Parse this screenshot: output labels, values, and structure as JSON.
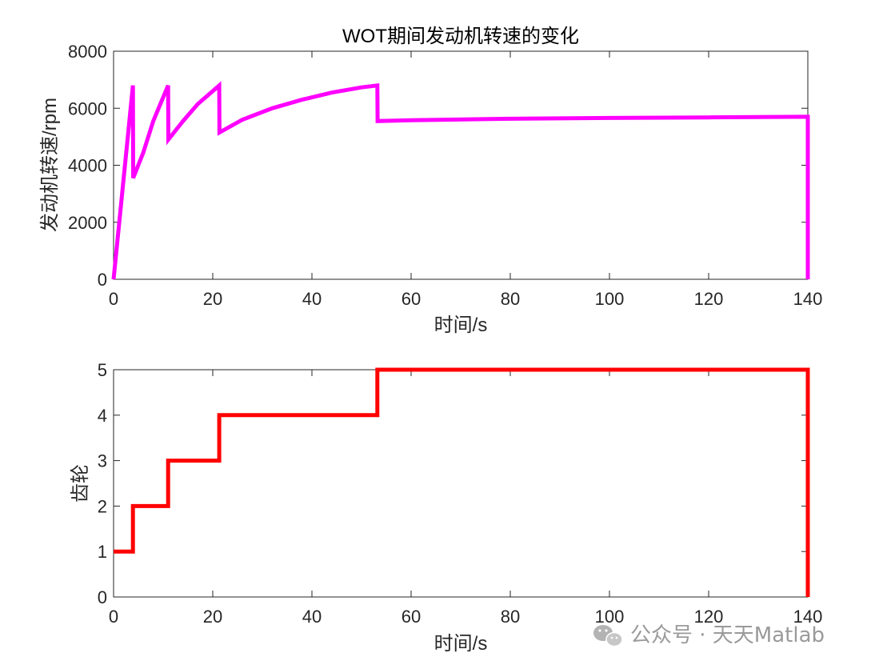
{
  "chart_data": [
    {
      "type": "line",
      "title": "WOT期间发动机转速的变化",
      "xlabel": "时间/s",
      "ylabel": "发动机转速/rpm",
      "xlim": [
        0,
        140
      ],
      "ylim": [
        0,
        8000
      ],
      "xticks": [
        0,
        20,
        40,
        60,
        80,
        100,
        120,
        140
      ],
      "yticks": [
        0,
        2000,
        4000,
        6000,
        8000
      ],
      "xtick_labels": [
        "0",
        "20",
        "40",
        "60",
        "80",
        "100",
        "120",
        "140"
      ],
      "ytick_labels": [
        "0",
        "2000",
        "4000",
        "6000",
        "8000"
      ],
      "grid": false,
      "series": [
        {
          "color": "#ff00ff",
          "x": [
            0,
            3.9,
            3.95,
            6,
            8,
            11,
            11.05,
            14,
            17,
            21.3,
            21.35,
            26,
            32,
            38,
            44,
            50,
            53.2,
            53.25,
            60,
            80,
            100,
            120,
            139.9,
            140,
            140
          ],
          "y": [
            0,
            6800,
            3550,
            4450,
            5550,
            6800,
            4900,
            5550,
            6150,
            6800,
            5150,
            5600,
            6000,
            6300,
            6550,
            6730,
            6800,
            5550,
            5580,
            5630,
            5660,
            5680,
            5700,
            5700,
            0
          ]
        }
      ]
    },
    {
      "type": "line",
      "title": "",
      "xlabel": "时间/s",
      "ylabel": "齿轮",
      "xlim": [
        0,
        140
      ],
      "ylim": [
        0,
        5
      ],
      "xticks": [
        0,
        20,
        40,
        60,
        80,
        100,
        120,
        140
      ],
      "yticks": [
        0,
        1,
        2,
        3,
        4,
        5
      ],
      "xtick_labels": [
        "0",
        "20",
        "40",
        "60",
        "80",
        "100",
        "120",
        "140"
      ],
      "ytick_labels": [
        "0",
        "1",
        "2",
        "3",
        "4",
        "5"
      ],
      "grid": false,
      "series": [
        {
          "color": "#ff0000",
          "x": [
            0,
            3.9,
            3.9,
            11,
            11,
            21.3,
            21.3,
            53.2,
            53.2,
            140,
            140
          ],
          "y": [
            1,
            1,
            2,
            2,
            3,
            3,
            4,
            4,
            5,
            5,
            0
          ]
        }
      ]
    }
  ],
  "watermark": {
    "icon": "wechat-icon",
    "text": "公众号 · 天天Matlab"
  }
}
